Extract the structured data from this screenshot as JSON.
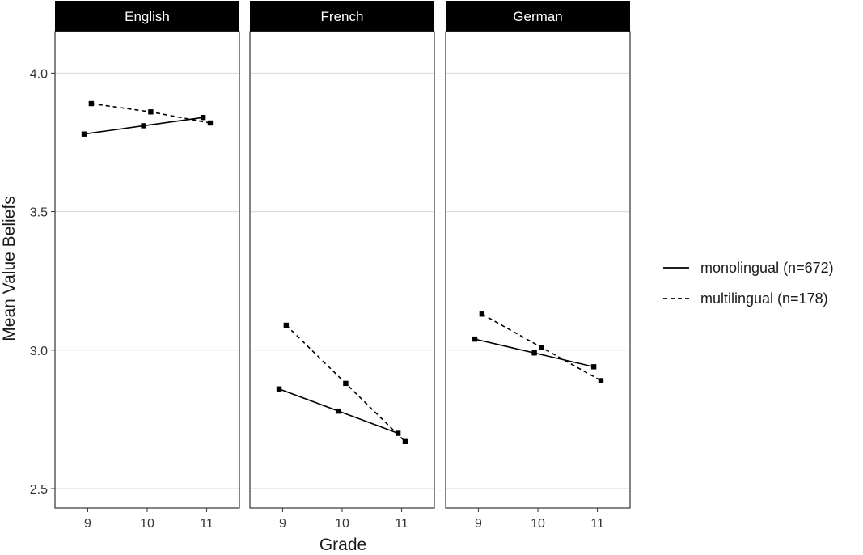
{
  "chart_data": {
    "type": "line",
    "facets": [
      "English",
      "French",
      "German"
    ],
    "xlabel": "Grade",
    "ylabel": "Mean Value Beliefs",
    "x_ticks": [
      9,
      10,
      11
    ],
    "y_ticks": [
      2.5,
      3.0,
      3.5,
      4.0
    ],
    "ylim": [
      2.43,
      4.15
    ],
    "grid": "horizontal major",
    "legend_position": "right",
    "series": [
      {
        "name": "monolingual (n=672)",
        "linestyle": "solid",
        "panels": [
          {
            "facet": "English",
            "x": [
              9,
              10,
              11
            ],
            "y": [
              3.78,
              3.81,
              3.84
            ]
          },
          {
            "facet": "French",
            "x": [
              9,
              10,
              11
            ],
            "y": [
              2.86,
              2.78,
              2.7
            ]
          },
          {
            "facet": "German",
            "x": [
              9,
              10,
              11
            ],
            "y": [
              3.04,
              2.99,
              2.94
            ]
          }
        ]
      },
      {
        "name": "multilingual (n=178)",
        "linestyle": "dashed",
        "panels": [
          {
            "facet": "English",
            "x": [
              9,
              10,
              11
            ],
            "y": [
              3.89,
              3.86,
              3.82
            ]
          },
          {
            "facet": "French",
            "x": [
              9,
              10,
              11
            ],
            "y": [
              3.09,
              2.88,
              2.67
            ]
          },
          {
            "facet": "German",
            "x": [
              9,
              10,
              11
            ],
            "y": [
              3.13,
              3.01,
              2.89
            ]
          }
        ]
      }
    ],
    "colors": {
      "line": "#000000",
      "strip": "#000000",
      "strip_text": "#ffffff",
      "grid": "#d9d9d9"
    }
  }
}
